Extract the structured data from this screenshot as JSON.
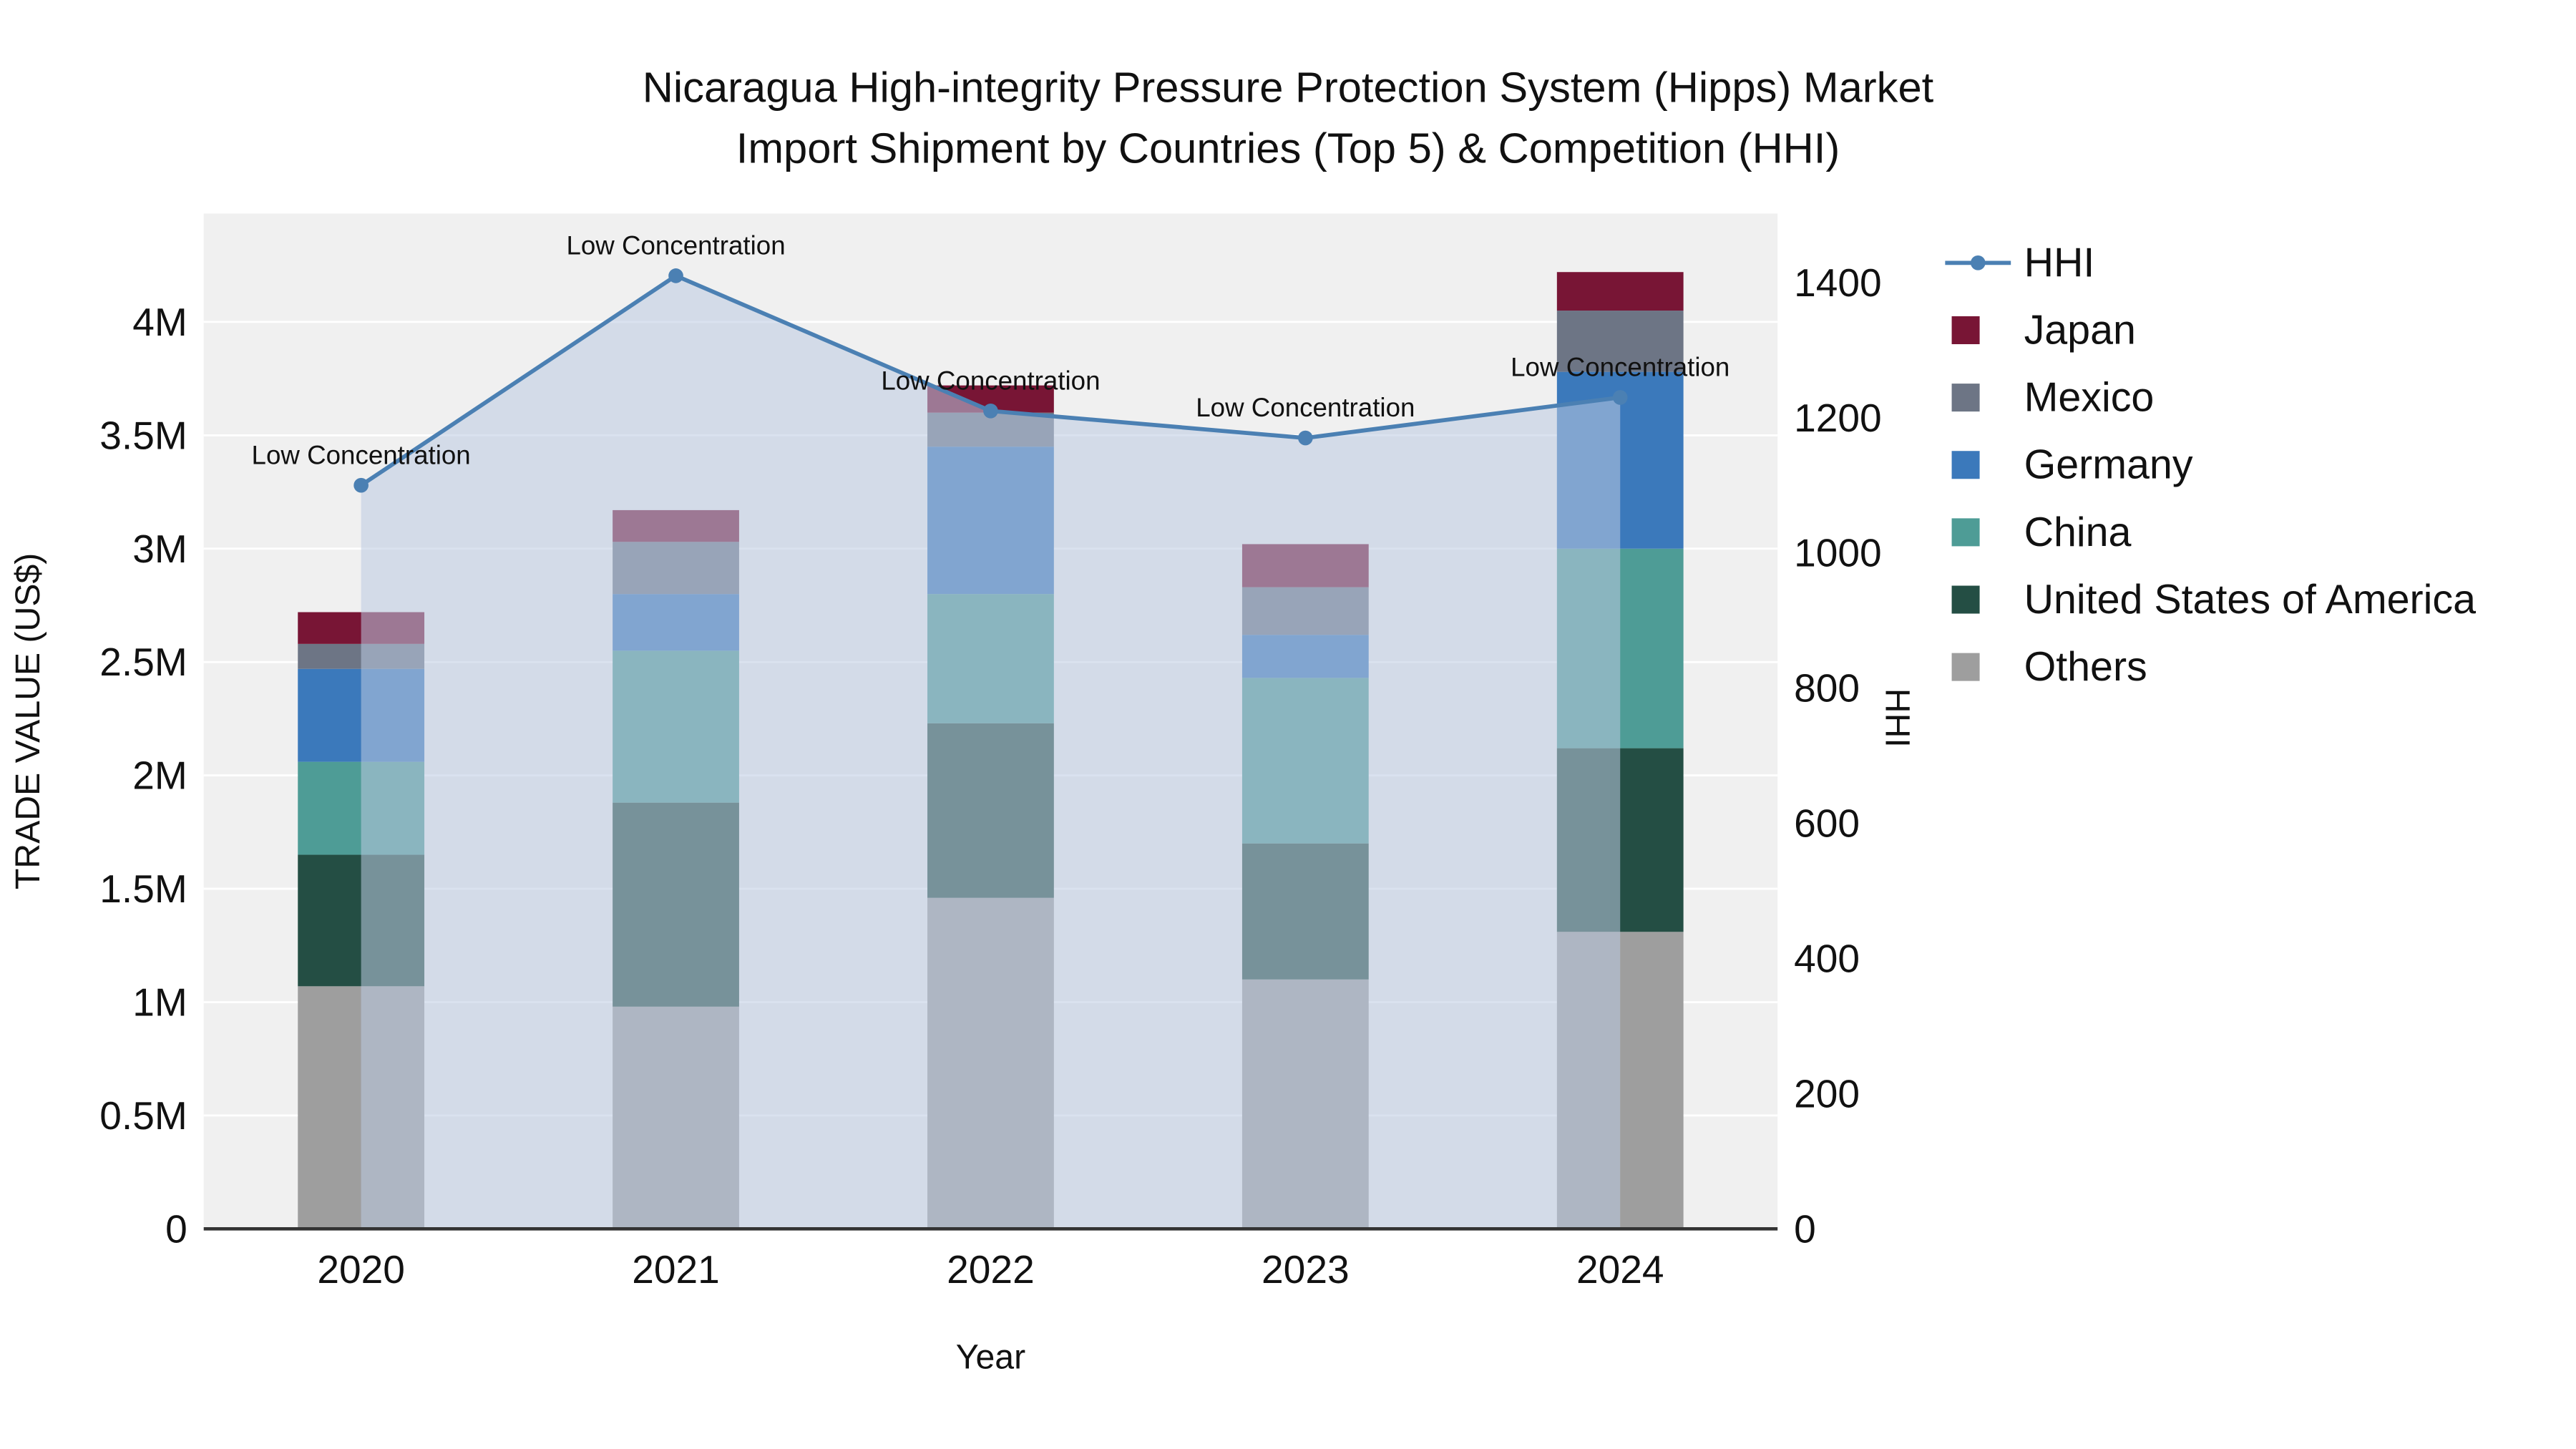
{
  "title": {
    "line1": "Nicaragua High-integrity Pressure Protection System (Hipps) Market",
    "line2": "Import Shipment by Countries (Top 5) & Competition (HHI)"
  },
  "chart_data": {
    "type": "bar",
    "subtype": "stacked-bar-with-line",
    "unit": "USD millions (left axis), HHI index (right axis)",
    "categories": [
      "2020",
      "2021",
      "2022",
      "2023",
      "2024"
    ],
    "xlabel": "Year",
    "ylabel_left": "TRADE VALUE (US$)",
    "ylabel_right": "HHI",
    "bar_series": [
      {
        "name": "Others",
        "color": "#9e9e9e",
        "values": [
          1.07,
          0.98,
          1.46,
          1.1,
          1.31
        ]
      },
      {
        "name": "United States of America",
        "color": "#244e44",
        "values": [
          0.58,
          0.9,
          0.77,
          0.6,
          0.81
        ]
      },
      {
        "name": "China",
        "color": "#4e9c96",
        "values": [
          0.41,
          0.67,
          0.57,
          0.73,
          0.88
        ]
      },
      {
        "name": "Germany",
        "color": "#3b79bb",
        "values": [
          0.41,
          0.25,
          0.65,
          0.19,
          0.78
        ]
      },
      {
        "name": "Mexico",
        "color": "#6d7585",
        "values": [
          0.11,
          0.23,
          0.15,
          0.21,
          0.27
        ]
      },
      {
        "name": "Japan",
        "color": "#781535",
        "values": [
          0.14,
          0.14,
          0.12,
          0.19,
          0.17
        ]
      }
    ],
    "line_series": {
      "name": "HHI",
      "color": "#4b80b3",
      "values": [
        1100,
        1410,
        1210,
        1170,
        1230
      ]
    },
    "annotations": [
      "Low Concentration",
      "Low Concentration",
      "Low Concentration",
      "Low Concentration",
      "Low Concentration"
    ],
    "axes": {
      "y_left": {
        "min": 0,
        "max": 4.478,
        "ticks": [
          0,
          0.5,
          1,
          1.5,
          2,
          2.5,
          3,
          3.5,
          4
        ],
        "labels": [
          "0",
          "0.5M",
          "1M",
          "1.5M",
          "2M",
          "2.5M",
          "3M",
          "3.5M",
          "4M"
        ]
      },
      "y_right": {
        "min": 0,
        "max": 1502,
        "ticks": [
          0,
          200,
          400,
          600,
          800,
          1000,
          1200,
          1400
        ],
        "labels": [
          "0",
          "200",
          "400",
          "600",
          "800",
          "1000",
          "1200",
          "1400"
        ]
      }
    },
    "legend": [
      {
        "name": "HHI",
        "type": "line",
        "color": "#4b80b3"
      },
      {
        "name": "Japan",
        "type": "square",
        "color": "#781535"
      },
      {
        "name": "Mexico",
        "type": "square",
        "color": "#6d7585"
      },
      {
        "name": "Germany",
        "type": "square",
        "color": "#3b79bb"
      },
      {
        "name": "China",
        "type": "square",
        "color": "#4e9c96"
      },
      {
        "name": "United States of America",
        "type": "square",
        "color": "#244e44"
      },
      {
        "name": "Others",
        "type": "square",
        "color": "#9e9e9e"
      }
    ],
    "colors": {
      "plot_bg": "#f0f0f0",
      "grid": "#ffffff",
      "area_fill": "#bccbe2",
      "area_opacity": 0.55,
      "axis_line": "#333333",
      "text": "#111111"
    },
    "grid": true,
    "legend_position": "right"
  }
}
